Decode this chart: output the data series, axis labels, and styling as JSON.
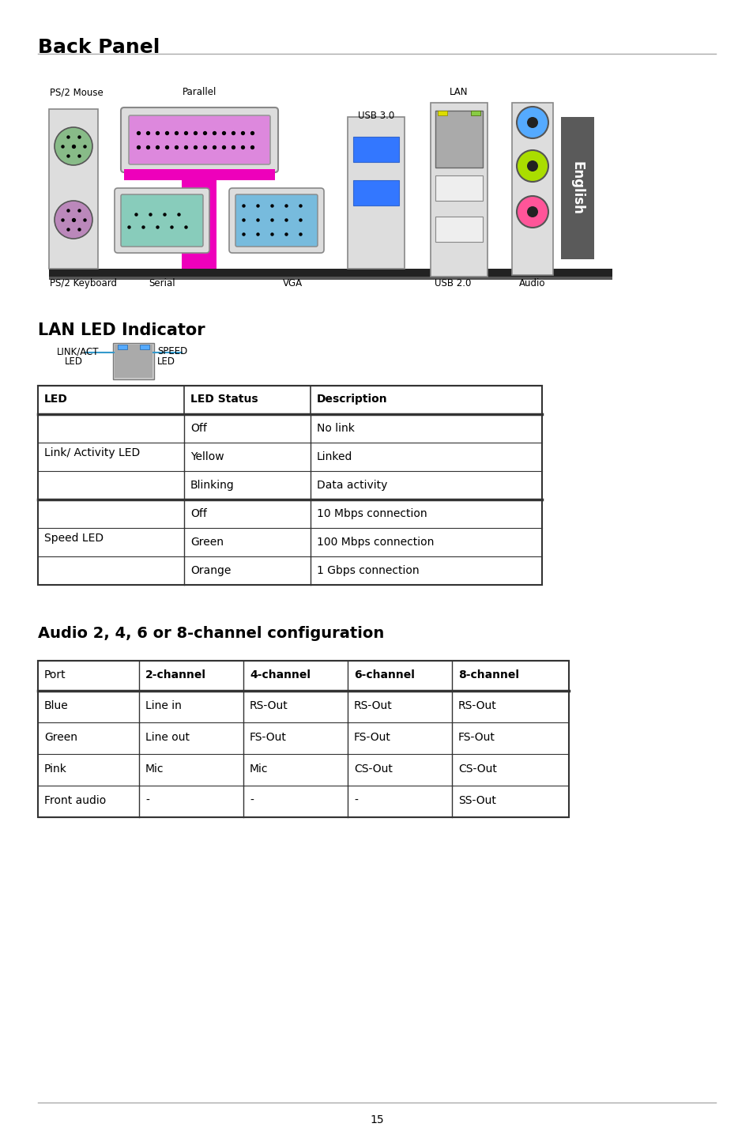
{
  "title": "Back Panel",
  "page_number": "15",
  "background_color": "#ffffff",
  "section1_title": "LAN LED Indicator",
  "section2_title": "Audio 2, 4, 6 or 8-channel configuration",
  "lan_table_headers": [
    "LED",
    "LED Status",
    "Description"
  ],
  "lan_table_rows": [
    [
      "",
      "Off",
      "No link"
    ],
    [
      "Link/ Activity LED",
      "Yellow",
      "Linked"
    ],
    [
      "",
      "Blinking",
      "Data activity"
    ],
    [
      "",
      "Off",
      "10 Mbps connection"
    ],
    [
      "Speed LED",
      "Green",
      "100 Mbps connection"
    ],
    [
      "",
      "Orange",
      "1 Gbps connection"
    ]
  ],
  "audio_table_headers": [
    "Port",
    "2-channel",
    "4-channel",
    "6-channel",
    "8-channel"
  ],
  "audio_table_rows": [
    [
      "Blue",
      "Line in",
      "RS-Out",
      "RS-Out",
      "RS-Out"
    ],
    [
      "Green",
      "Line out",
      "FS-Out",
      "FS-Out",
      "FS-Out"
    ],
    [
      "Pink",
      "Mic",
      "Mic",
      "CS-Out",
      "CS-Out"
    ],
    [
      "Front audio",
      "-",
      "-",
      "-",
      "SS-Out"
    ]
  ],
  "tab_color": "#5a5a5a",
  "tab_text": "English",
  "audio_circles": [
    "#55aaff",
    "#aadd00",
    "#ff5599"
  ],
  "ps2_colors": [
    "#88bb88",
    "#bb88bb"
  ],
  "parallel_color": "#dd88dd",
  "serial_color": "#88ccbb",
  "vga_color": "#77bbdd",
  "usb30_color": "#3377ff",
  "lan_icon_color": "#aaaaaa"
}
